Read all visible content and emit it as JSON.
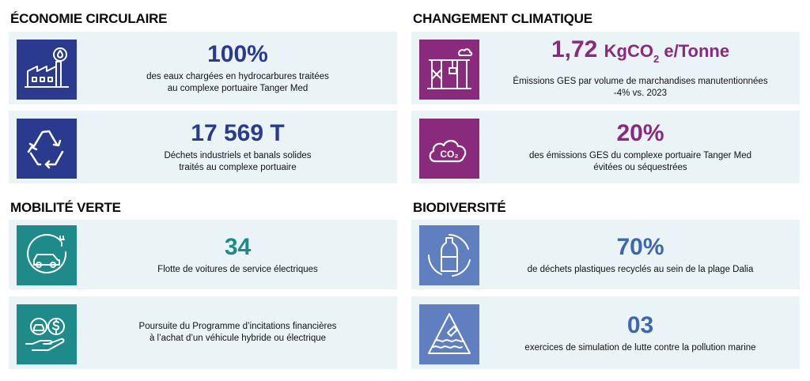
{
  "sections": {
    "circular": "ÉCONOMIE CIRCULAIRE",
    "climate": "CHANGEMENT CLIMATIQUE",
    "mobility": "MOBILITÉ VERTE",
    "biodiversity": "BIODIVERSITÉ"
  },
  "cards": {
    "water": {
      "value": "100%",
      "desc": "des eaux chargées en hydrocarbures traitées\nau complexe portuaire Tanger Med"
    },
    "waste": {
      "value": "17 569 T",
      "desc": "Déchets industriels et banals solides\ntraités au complexe portuaire"
    },
    "ges": {
      "value": "1,72",
      "unit_a": "KgCO",
      "unit_sub": "2",
      "unit_b": " e/Tonne",
      "desc": "Émissions GES par volume de marchandises manutentionnées\n-4% vs. 2023"
    },
    "avoided": {
      "value": "20%",
      "desc": "des émissions GES du complexe portuaire Tanger Med\névitées ou séquestrées"
    },
    "fleet": {
      "value": "34",
      "desc": "Flotte de voitures de service électriques"
    },
    "incentive": {
      "desc": "Poursuite du Programme d’incitations financières\nà l’achat d’un véhicule hybride ou électrique"
    },
    "plastic": {
      "value": "70%",
      "desc": "de déchets plastiques recyclés au sein de la plage Dalia"
    },
    "simulation": {
      "value": "03",
      "desc": "exercices de simulation de lutte contre la pollution marine"
    }
  },
  "icons": {
    "water": "factory-droplet-icon",
    "waste": "recycle-icon",
    "ges": "port-crane-icon",
    "avoided": "co2-cloud-icon",
    "fleet": "electric-car-icon",
    "incentive": "hand-car-dollar-icon",
    "plastic": "bottle-recycle-icon",
    "simulation": "marine-pollution-icon",
    "co2_label": "CO₂"
  },
  "colors": {
    "navy": "#2a3b8f",
    "purple": "#8a2a7c",
    "teal": "#1e8a8a",
    "blue": "#5f7fbf",
    "card_bg": "#eaf3f6"
  }
}
